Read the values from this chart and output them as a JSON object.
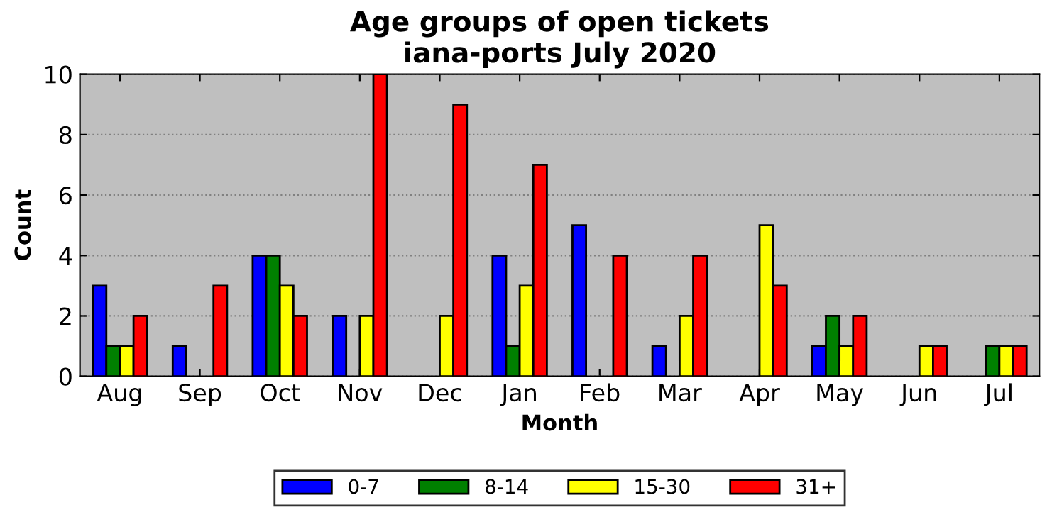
{
  "chart_data": {
    "type": "bar",
    "title": "Age groups of open tickets\niana-ports July 2020",
    "xlabel": "Month",
    "ylabel": "Count",
    "categories": [
      "Aug",
      "Sep",
      "Oct",
      "Nov",
      "Dec",
      "Jan",
      "Feb",
      "Mar",
      "Apr",
      "May",
      "Jun",
      "Jul"
    ],
    "series": [
      {
        "name": "0-7",
        "color": "#0000ff",
        "values": [
          3,
          1,
          4,
          2,
          0,
          4,
          5,
          1,
          0,
          1,
          0,
          0
        ]
      },
      {
        "name": "8-14",
        "color": "#008000",
        "values": [
          1,
          0,
          4,
          0,
          0,
          1,
          0,
          0,
          0,
          2,
          0,
          1
        ]
      },
      {
        "name": "15-30",
        "color": "#ffff00",
        "values": [
          1,
          0,
          3,
          2,
          2,
          3,
          0,
          2,
          5,
          1,
          1,
          1
        ]
      },
      {
        "name": "31+",
        "color": "#ff0000",
        "values": [
          2,
          3,
          2,
          10,
          9,
          7,
          4,
          4,
          3,
          2,
          1,
          1
        ]
      }
    ],
    "ylim": [
      0,
      10
    ],
    "yticks": [
      0,
      2,
      4,
      6,
      8,
      10
    ],
    "grid": "y",
    "legend": "bottom"
  }
}
